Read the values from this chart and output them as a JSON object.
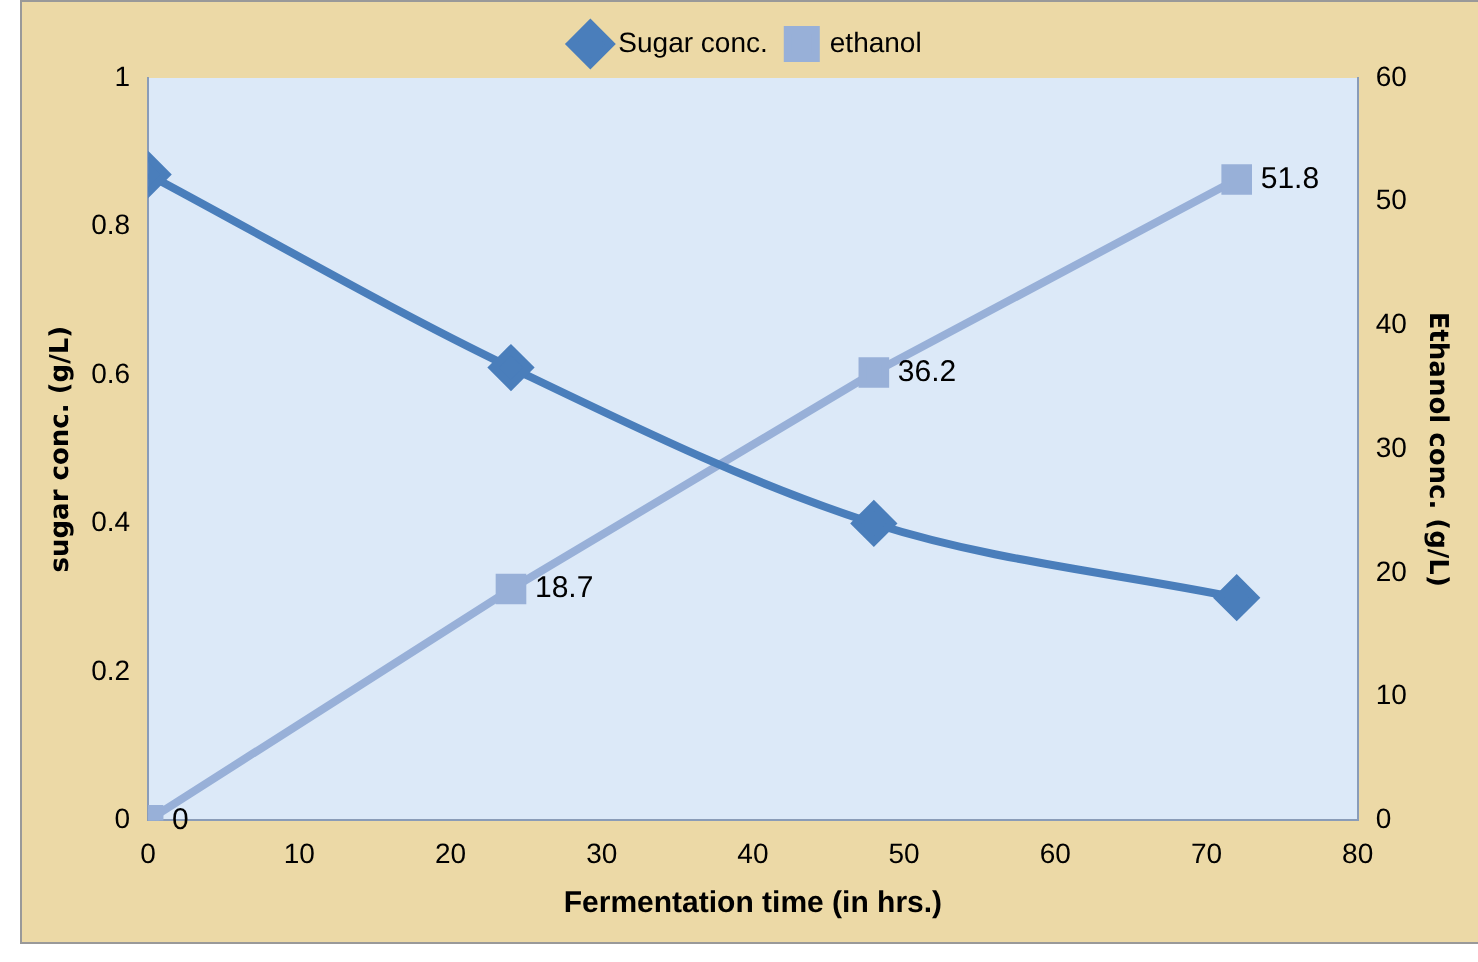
{
  "chart_data": {
    "type": "line",
    "xlabel": "Fermentation time (in hrs.)",
    "ylabel": "sugar conc. (g/L)",
    "y2label": "Ethanol conc. (g/L)",
    "x": [
      0,
      24,
      48,
      72
    ],
    "series": [
      {
        "name": "Sugar conc.",
        "color": "#4a7ebb",
        "values": [
          0.87,
          0.61,
          0.4,
          0.3
        ],
        "marker": "diamond"
      },
      {
        "name": "ethanol",
        "color": "#98b0d8",
        "values": [
          0,
          18.7,
          36.2,
          51.8
        ],
        "axis": "y2",
        "marker": "square",
        "value_labels": [
          "0",
          "18.7",
          "36.2",
          "51.8"
        ]
      }
    ],
    "xlim": [
      0,
      80
    ],
    "xticks": [
      0,
      10,
      20,
      30,
      40,
      50,
      60,
      70,
      80
    ],
    "ylim": [
      0,
      1
    ],
    "yticks": [
      0,
      0.2,
      0.4,
      0.6,
      0.8,
      1
    ],
    "y2lim": [
      0,
      60
    ],
    "y2ticks": [
      0,
      10,
      20,
      30,
      40,
      50,
      60
    ],
    "grid": false,
    "legend": "top"
  }
}
